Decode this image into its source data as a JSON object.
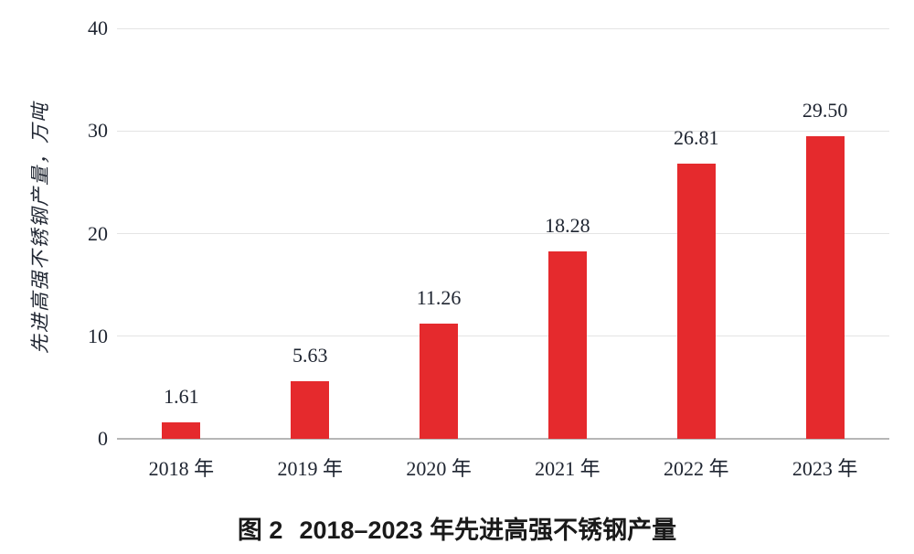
{
  "figure": {
    "caption_prefix": "图 2",
    "caption_title": "2018–2023 年先进高强不锈钢产量"
  },
  "chart_data": {
    "type": "bar",
    "title": "图 2 2018–2023 年先进高强不锈钢产量",
    "categories": [
      "2018 年",
      "2019 年",
      "2020 年",
      "2021 年",
      "2022 年",
      "2023 年"
    ],
    "values": [
      1.61,
      5.63,
      11.26,
      18.28,
      26.81,
      29.5
    ],
    "value_labels": [
      "1.61",
      "5.63",
      "11.26",
      "18.28",
      "26.81",
      "29.50"
    ],
    "xlabel": "",
    "ylabel": "先进高强不锈钢产量，万吨",
    "yticks": [
      0,
      10,
      20,
      30,
      40
    ],
    "ylim": [
      0,
      40
    ],
    "grid": "horizontal",
    "legend": "none",
    "colors": {
      "bar": "#e52a2d",
      "grid_line": "#e4e4e4",
      "axis_line": "#b6b6b6",
      "text": "#1e2430",
      "caption_text": "#1a1a1a"
    }
  }
}
